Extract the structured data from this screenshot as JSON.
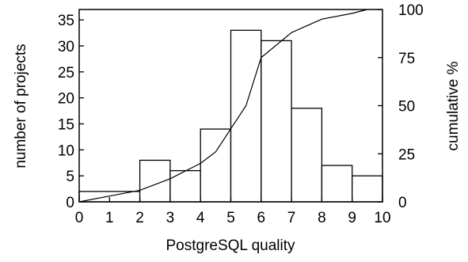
{
  "chart_data": {
    "type": "bar",
    "title": "",
    "xlabel": "PostgreSQL quality",
    "ylabel": "number of projects",
    "y2label": "cumulative %",
    "xlim": [
      0,
      10
    ],
    "ylim": [
      0,
      37
    ],
    "y2lim": [
      0,
      100
    ],
    "grid": false,
    "x_ticks": [
      "0",
      "1",
      "2",
      "3",
      "4",
      "5",
      "6",
      "7",
      "8",
      "9",
      "10"
    ],
    "y_ticks": [
      "0",
      "5",
      "10",
      "15",
      "20",
      "25",
      "30",
      "35"
    ],
    "y2_ticks": [
      "0",
      "25",
      "50",
      "75",
      "100"
    ],
    "bins": [
      {
        "x0": 0,
        "x1": 2,
        "value": 2
      },
      {
        "x0": 2,
        "x1": 3,
        "value": 8
      },
      {
        "x0": 3,
        "x1": 4,
        "value": 6
      },
      {
        "x0": 4,
        "x1": 5,
        "value": 14
      },
      {
        "x0": 5,
        "x1": 6,
        "value": 33
      },
      {
        "x0": 6,
        "x1": 7,
        "value": 31
      },
      {
        "x0": 7,
        "x1": 8,
        "value": 18
      },
      {
        "x0": 8,
        "x1": 9,
        "value": 7
      },
      {
        "x0": 9,
        "x1": 10,
        "value": 5
      }
    ],
    "cumulative": {
      "x": [
        0,
        1,
        2,
        3,
        4,
        4.5,
        5,
        5.5,
        6,
        7,
        8,
        9,
        9.5
      ],
      "y": [
        0,
        3,
        6,
        12,
        20,
        26,
        38,
        50,
        75,
        88,
        95,
        98,
        100
      ]
    }
  }
}
